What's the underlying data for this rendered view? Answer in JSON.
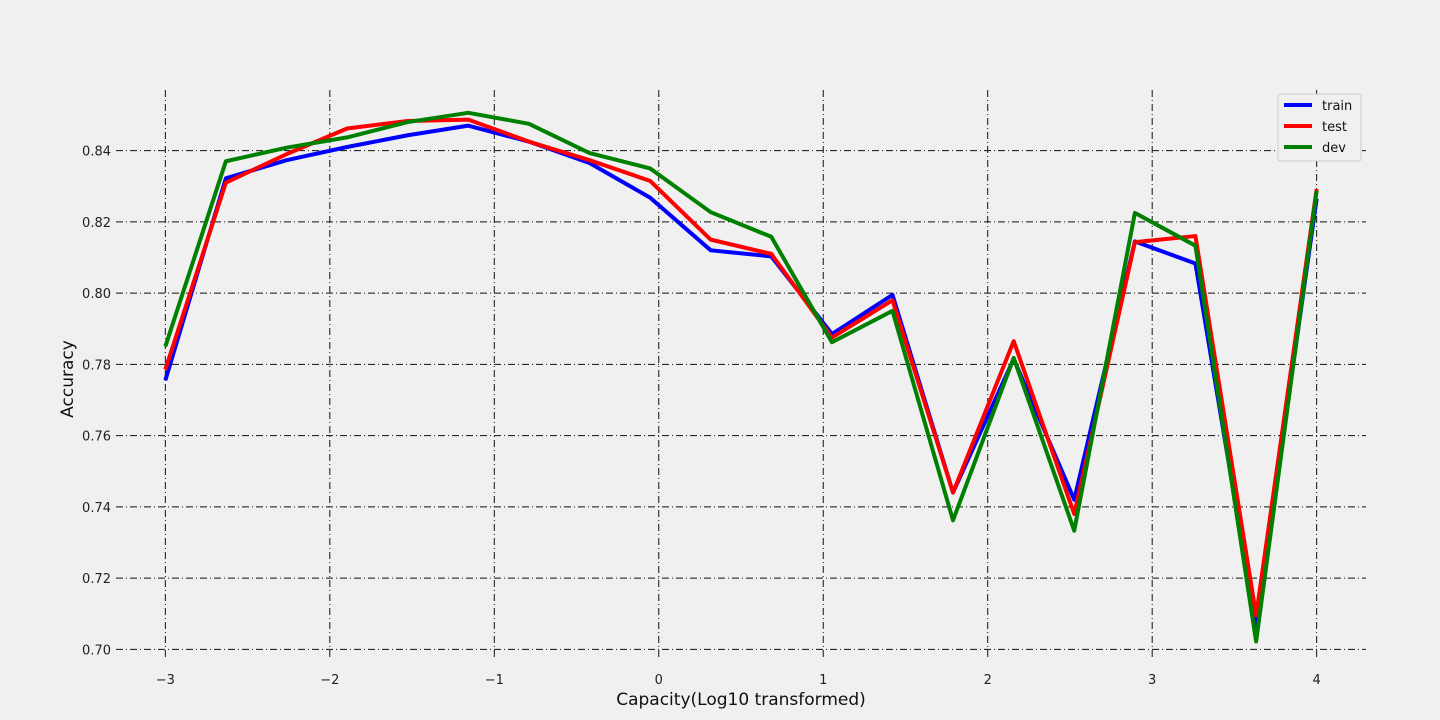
{
  "chart_data": {
    "type": "line",
    "title": "",
    "xlabel": "Capacity(Log10 transformed)",
    "ylabel": "Accuracy",
    "xlim": [
      -3.3,
      4.3
    ],
    "ylim": [
      0.697,
      0.857
    ],
    "xticks": [
      -3,
      -2,
      -1,
      0,
      1,
      2,
      3,
      4
    ],
    "xtick_labels": [
      "−3",
      "−2",
      "−1",
      "0",
      "1",
      "2",
      "3",
      "4"
    ],
    "yticks": [
      0.7,
      0.72,
      0.74,
      0.76,
      0.78,
      0.8,
      0.82,
      0.84
    ],
    "ytick_labels": [
      "0.70",
      "0.72",
      "0.74",
      "0.76",
      "0.78",
      "0.80",
      "0.82",
      "0.84"
    ],
    "grid": true,
    "legend_position": "top-right",
    "x": [
      -3.0,
      -2.632,
      -2.263,
      -1.895,
      -1.526,
      -1.158,
      -0.789,
      -0.421,
      -0.053,
      0.316,
      0.684,
      1.053,
      1.421,
      1.789,
      2.158,
      2.526,
      2.895,
      3.263,
      3.632,
      4.0
    ],
    "series": [
      {
        "name": "train",
        "color": "#0000ff",
        "values": [
          0.7755,
          0.8322,
          0.8373,
          0.841,
          0.8443,
          0.847,
          0.8425,
          0.8365,
          0.8268,
          0.812,
          0.8103,
          0.7885,
          0.7995,
          0.744,
          0.7815,
          0.742,
          0.8145,
          0.8083,
          0.7062,
          0.8265
        ]
      },
      {
        "name": "test",
        "color": "#ff0000",
        "values": [
          0.7785,
          0.831,
          0.839,
          0.8462,
          0.8483,
          0.8487,
          0.8425,
          0.8373,
          0.8315,
          0.815,
          0.811,
          0.7875,
          0.798,
          0.744,
          0.7865,
          0.738,
          0.8143,
          0.816,
          0.7095,
          0.8292
        ]
      },
      {
        "name": "dev",
        "color": "#008000",
        "values": [
          0.785,
          0.837,
          0.8408,
          0.8437,
          0.848,
          0.8506,
          0.8475,
          0.8393,
          0.835,
          0.8227,
          0.8158,
          0.7862,
          0.795,
          0.7362,
          0.7818,
          0.7333,
          0.8225,
          0.8133,
          0.7022,
          0.8287
        ]
      }
    ]
  }
}
